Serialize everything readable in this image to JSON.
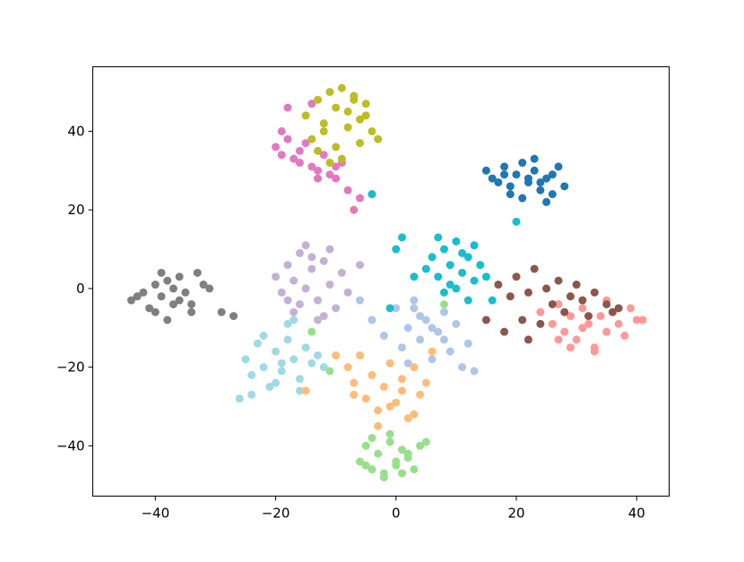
{
  "chart_data": {
    "type": "scatter",
    "xlim": [
      -50.4,
      45.4
    ],
    "ylim": [
      -52.8,
      56.4
    ],
    "xticks": [
      {
        "value": -40,
        "label": "−40"
      },
      {
        "value": -20,
        "label": "−20"
      },
      0,
      20,
      40
    ],
    "yticks": [
      {
        "value": -40,
        "label": "−40"
      },
      {
        "value": -20,
        "label": "−20"
      },
      0,
      20,
      40
    ],
    "grid": false,
    "series": [
      {
        "color": "#7f7f7f",
        "x": [
          -44,
          -42,
          -41,
          -40,
          -39,
          -38,
          -37,
          -36,
          -35,
          -34,
          -33,
          -32,
          -43,
          -40,
          -38,
          -36,
          -34,
          -31,
          -29,
          -27,
          -39,
          -37
        ],
        "y": [
          -3,
          -1,
          -5,
          1,
          -2,
          2,
          0,
          3,
          -1,
          -4,
          4,
          1,
          -2,
          -6,
          -8,
          -3,
          -6,
          0,
          -6,
          -7,
          4,
          -4
        ]
      },
      {
        "color": "#1f77b4",
        "x": [
          15,
          17,
          18,
          19,
          20,
          21,
          22,
          23,
          24,
          25,
          26,
          27,
          28,
          19,
          21,
          23,
          25,
          22,
          18,
          24,
          16,
          26
        ],
        "y": [
          30,
          27,
          31,
          26,
          29,
          32,
          27,
          30,
          25,
          28,
          29,
          31,
          26,
          24,
          23,
          33,
          22,
          28,
          29,
          27,
          28,
          24
        ]
      },
      {
        "color": "#e377c2",
        "x": [
          -20,
          -19,
          -18,
          -17,
          -16,
          -15,
          -14,
          -13,
          -12,
          -11,
          -10,
          -9,
          -8,
          -7,
          -19,
          -16,
          -13,
          -10,
          -6,
          -4,
          -18,
          -14
        ],
        "y": [
          36,
          34,
          38,
          33,
          35,
          37,
          31,
          30,
          34,
          29,
          28,
          32,
          25,
          20,
          40,
          32,
          28,
          31,
          23,
          24,
          46,
          47
        ]
      },
      {
        "color": "#bcbd22",
        "x": [
          -15,
          -13,
          -12,
          -11,
          -10,
          -9,
          -8,
          -7,
          -6,
          -5,
          -4,
          -3,
          -14,
          -12,
          -10,
          -8,
          -6,
          -9,
          -11,
          -7,
          -13,
          -5
        ],
        "y": [
          44,
          48,
          42,
          50,
          46,
          51,
          45,
          49,
          43,
          47,
          40,
          38,
          38,
          40,
          36,
          41,
          37,
          33,
          32,
          48,
          35,
          44
        ]
      },
      {
        "color": "#c5b0d5",
        "x": [
          -20,
          -19,
          -18,
          -17,
          -16,
          -15,
          -14,
          -13,
          -12,
          -11,
          -10,
          -9,
          -8,
          -17,
          -15,
          -13,
          -11,
          -14,
          -18,
          -16,
          -12,
          -6
        ],
        "y": [
          3,
          -1,
          6,
          2,
          9,
          0,
          5,
          -3,
          7,
          1,
          -5,
          4,
          -1,
          -6,
          11,
          -8,
          10,
          8,
          -3,
          -4,
          -7,
          6
        ]
      },
      {
        "color": "#9edae5",
        "x": [
          -25,
          -24,
          -23,
          -22,
          -21,
          -20,
          -19,
          -18,
          -17,
          -16,
          -15,
          -14,
          -13,
          -12,
          -22,
          -20,
          -18,
          -16,
          -24,
          -19,
          -26,
          -17
        ],
        "y": [
          -18,
          -22,
          -14,
          -20,
          -25,
          -16,
          -21,
          -13,
          -18,
          -23,
          -15,
          -19,
          -17,
          -20,
          -12,
          -24,
          -9,
          -26,
          -27,
          -19,
          -28,
          -8
        ]
      },
      {
        "color": "#aec7e8",
        "x": [
          -4,
          -2,
          0,
          1,
          2,
          3,
          4,
          5,
          6,
          7,
          8,
          9,
          10,
          11,
          12,
          13,
          2,
          4,
          6,
          8,
          -6,
          3
        ],
        "y": [
          -8,
          -12,
          -5,
          -15,
          -10,
          -3,
          -13,
          -8,
          -18,
          -11,
          -6,
          -16,
          -9,
          -20,
          -14,
          -21,
          -19,
          -7,
          -10,
          -13,
          -3,
          -5
        ]
      },
      {
        "color": "#ffbb78",
        "x": [
          -8,
          -7,
          -6,
          -5,
          -4,
          -3,
          -2,
          -1,
          0,
          1,
          2,
          3,
          4,
          5,
          6,
          -3,
          -1,
          1,
          3,
          -7,
          -15,
          -10
        ],
        "y": [
          -20,
          -24,
          -17,
          -28,
          -22,
          -31,
          -25,
          -19,
          -29,
          -23,
          -33,
          -20,
          -27,
          -24,
          -16,
          -35,
          -30,
          -26,
          -32,
          -27,
          -26,
          -17
        ]
      },
      {
        "color": "#98df8a",
        "x": [
          -6,
          -5,
          -4,
          -3,
          -2,
          -1,
          0,
          1,
          2,
          3,
          4,
          5,
          -4,
          -2,
          0,
          2,
          -5,
          -1,
          1,
          -11,
          -14,
          8
        ],
        "y": [
          -44,
          -40,
          -46,
          -42,
          -47,
          -39,
          -45,
          -41,
          -43,
          -46,
          -40,
          -39,
          -38,
          -48,
          -44,
          -42,
          -45,
          -37,
          -47,
          -21,
          -11,
          -4
        ]
      },
      {
        "color": "#ff9896",
        "x": [
          24,
          26,
          27,
          28,
          29,
          30,
          31,
          32,
          33,
          34,
          35,
          36,
          37,
          38,
          39,
          40,
          41,
          29,
          31,
          35,
          27,
          33
        ],
        "y": [
          -6,
          -9,
          -4,
          -11,
          -7,
          -13,
          -5,
          -9,
          -15,
          -7,
          -11,
          -6,
          -9,
          -12,
          -5,
          -8,
          -8,
          -15,
          -10,
          -3,
          -13,
          -16
        ]
      },
      {
        "color": "#8c564b",
        "x": [
          17,
          19,
          20,
          22,
          23,
          25,
          26,
          27,
          28,
          30,
          31,
          33,
          35,
          36,
          37,
          21,
          24,
          29,
          32,
          18,
          15,
          22
        ],
        "y": [
          1,
          -2,
          3,
          -1,
          5,
          0,
          -4,
          2,
          -6,
          1,
          -3,
          -1,
          -4,
          -6,
          -5,
          -8,
          -9,
          -2,
          -7,
          -11,
          -8,
          -13
        ]
      },
      {
        "color": "#17becf",
        "x": [
          5,
          6,
          7,
          8,
          9,
          10,
          11,
          12,
          13,
          14,
          15,
          7,
          9,
          11,
          13,
          8,
          10,
          12,
          3,
          1,
          -1,
          -4,
          0,
          16,
          20
        ],
        "y": [
          5,
          8,
          3,
          10,
          6,
          12,
          4,
          8,
          2,
          6,
          3,
          13,
          1,
          9,
          11,
          -1,
          0,
          -3,
          3,
          13,
          -5,
          24,
          10,
          -3,
          17
        ]
      }
    ]
  }
}
